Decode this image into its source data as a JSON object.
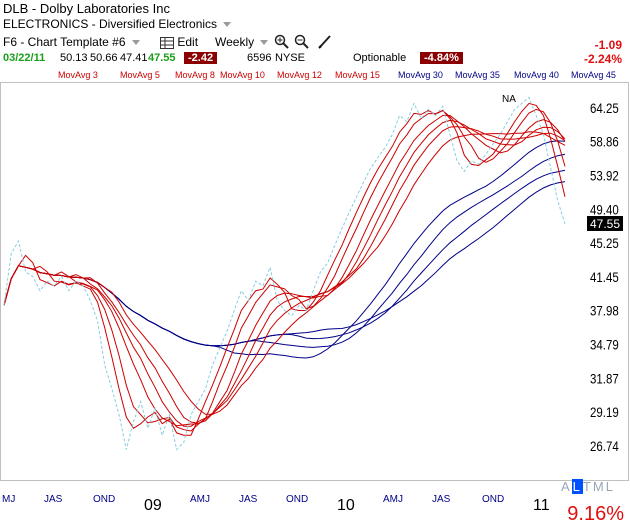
{
  "header": {
    "symbol": "DLB",
    "separator": "-",
    "company": "Dolby Laboratories Inc",
    "industry": "ELECTRONICS - Diversified Electronics",
    "template": "F6 - Chart Template #6",
    "edit_label": "Edit",
    "period": "Weekly",
    "optionable_label": "Optionable",
    "change_pct_box": "-4.84%"
  },
  "quote": {
    "date": "03/22/11",
    "open": "50.13",
    "high": "50.66",
    "low": "47.41",
    "close": "47.55",
    "change": "-2.42",
    "volume": "6596",
    "exchange": "NYSE"
  },
  "right_panel": {
    "change": "-1.09",
    "change_pct": "-2.24%"
  },
  "mov_avgs": [
    {
      "label": "MovAvg 3",
      "color": "#cc0000"
    },
    {
      "label": "MovAvg 5",
      "color": "#cc0000"
    },
    {
      "label": "MovAvg 8",
      "color": "#cc0000"
    },
    {
      "label": "MovAvg 10",
      "color": "#cc0000"
    },
    {
      "label": "MovAvg 12",
      "color": "#cc0000"
    },
    {
      "label": "MovAvg 15",
      "color": "#cc0000"
    },
    {
      "label": "MovAvg 30",
      "color": "#000088"
    },
    {
      "label": "MovAvg 35",
      "color": "#000088"
    },
    {
      "label": "MovAvg 40",
      "color": "#000088"
    },
    {
      "label": "MovAvg 45",
      "color": "#000088"
    }
  ],
  "chart_data": {
    "type": "line",
    "title": "DLB - Dolby Laboratories Inc",
    "y_ticks": [
      "64.25",
      "58.86",
      "53.92",
      "49.40",
      "45.25",
      "41.45",
      "37.98",
      "34.79",
      "31.87",
      "29.19",
      "26.74"
    ],
    "y_log": true,
    "ylim": [
      25.0,
      68.0
    ],
    "x_ticks": [
      "MJ",
      "JAS",
      "OND",
      "09",
      "AMJ",
      "JAS",
      "OND",
      "10",
      "AMJ",
      "JAS",
      "OND",
      "11"
    ],
    "last_price": "47.55",
    "annotation": "NA",
    "price_weekly": [
      38.5,
      44.0,
      45.5,
      42.0,
      41.5,
      40.0,
      41.0,
      40.5,
      41.5,
      40.0,
      41.0,
      40.5,
      39.0,
      37.0,
      33.0,
      31.0,
      29.0,
      26.5,
      28.5,
      30.0,
      28.0,
      29.5,
      27.5,
      29.0,
      26.5,
      27.0,
      29.0,
      30.0,
      31.0,
      33.0,
      34.5,
      36.0,
      38.0,
      40.0,
      39.0,
      41.0,
      40.5,
      42.5,
      39.0,
      38.0,
      37.5,
      38.5,
      38.0,
      40.0,
      42.0,
      43.0,
      45.0,
      47.0,
      49.0,
      51.0,
      53.0,
      55.0,
      56.5,
      58.0,
      60.0,
      63.0,
      62.0,
      65.0,
      62.5,
      64.0,
      63.0,
      64.5,
      60.0,
      56.0,
      54.5,
      56.0,
      55.5,
      57.0,
      58.5,
      60.0,
      62.0,
      64.0,
      65.0,
      66.0,
      63.0,
      60.0,
      55.0,
      50.5,
      47.55
    ],
    "series": [
      {
        "name": "MovAvg 3",
        "period": 3,
        "color": "#cc0000"
      },
      {
        "name": "MovAvg 5",
        "period": 5,
        "color": "#cc0000"
      },
      {
        "name": "MovAvg 8",
        "period": 8,
        "color": "#cc0000"
      },
      {
        "name": "MovAvg 10",
        "period": 10,
        "color": "#cc0000"
      },
      {
        "name": "MovAvg 12",
        "period": 12,
        "color": "#cc0000"
      },
      {
        "name": "MovAvg 15",
        "period": 15,
        "color": "#cc0000"
      },
      {
        "name": "MovAvg 30",
        "period": 30,
        "color": "#000088"
      },
      {
        "name": "MovAvg 35",
        "period": 35,
        "color": "#000088"
      },
      {
        "name": "MovAvg 40",
        "period": 40,
        "color": "#000088"
      },
      {
        "name": "MovAvg 45",
        "period": 45,
        "color": "#000088"
      }
    ],
    "price_line_color": "#87cede"
  },
  "footer": {
    "altml_letters": [
      "A",
      "L",
      "T",
      "M",
      "L"
    ],
    "altml_selected_index": 1,
    "score_pct": "9.16%"
  }
}
